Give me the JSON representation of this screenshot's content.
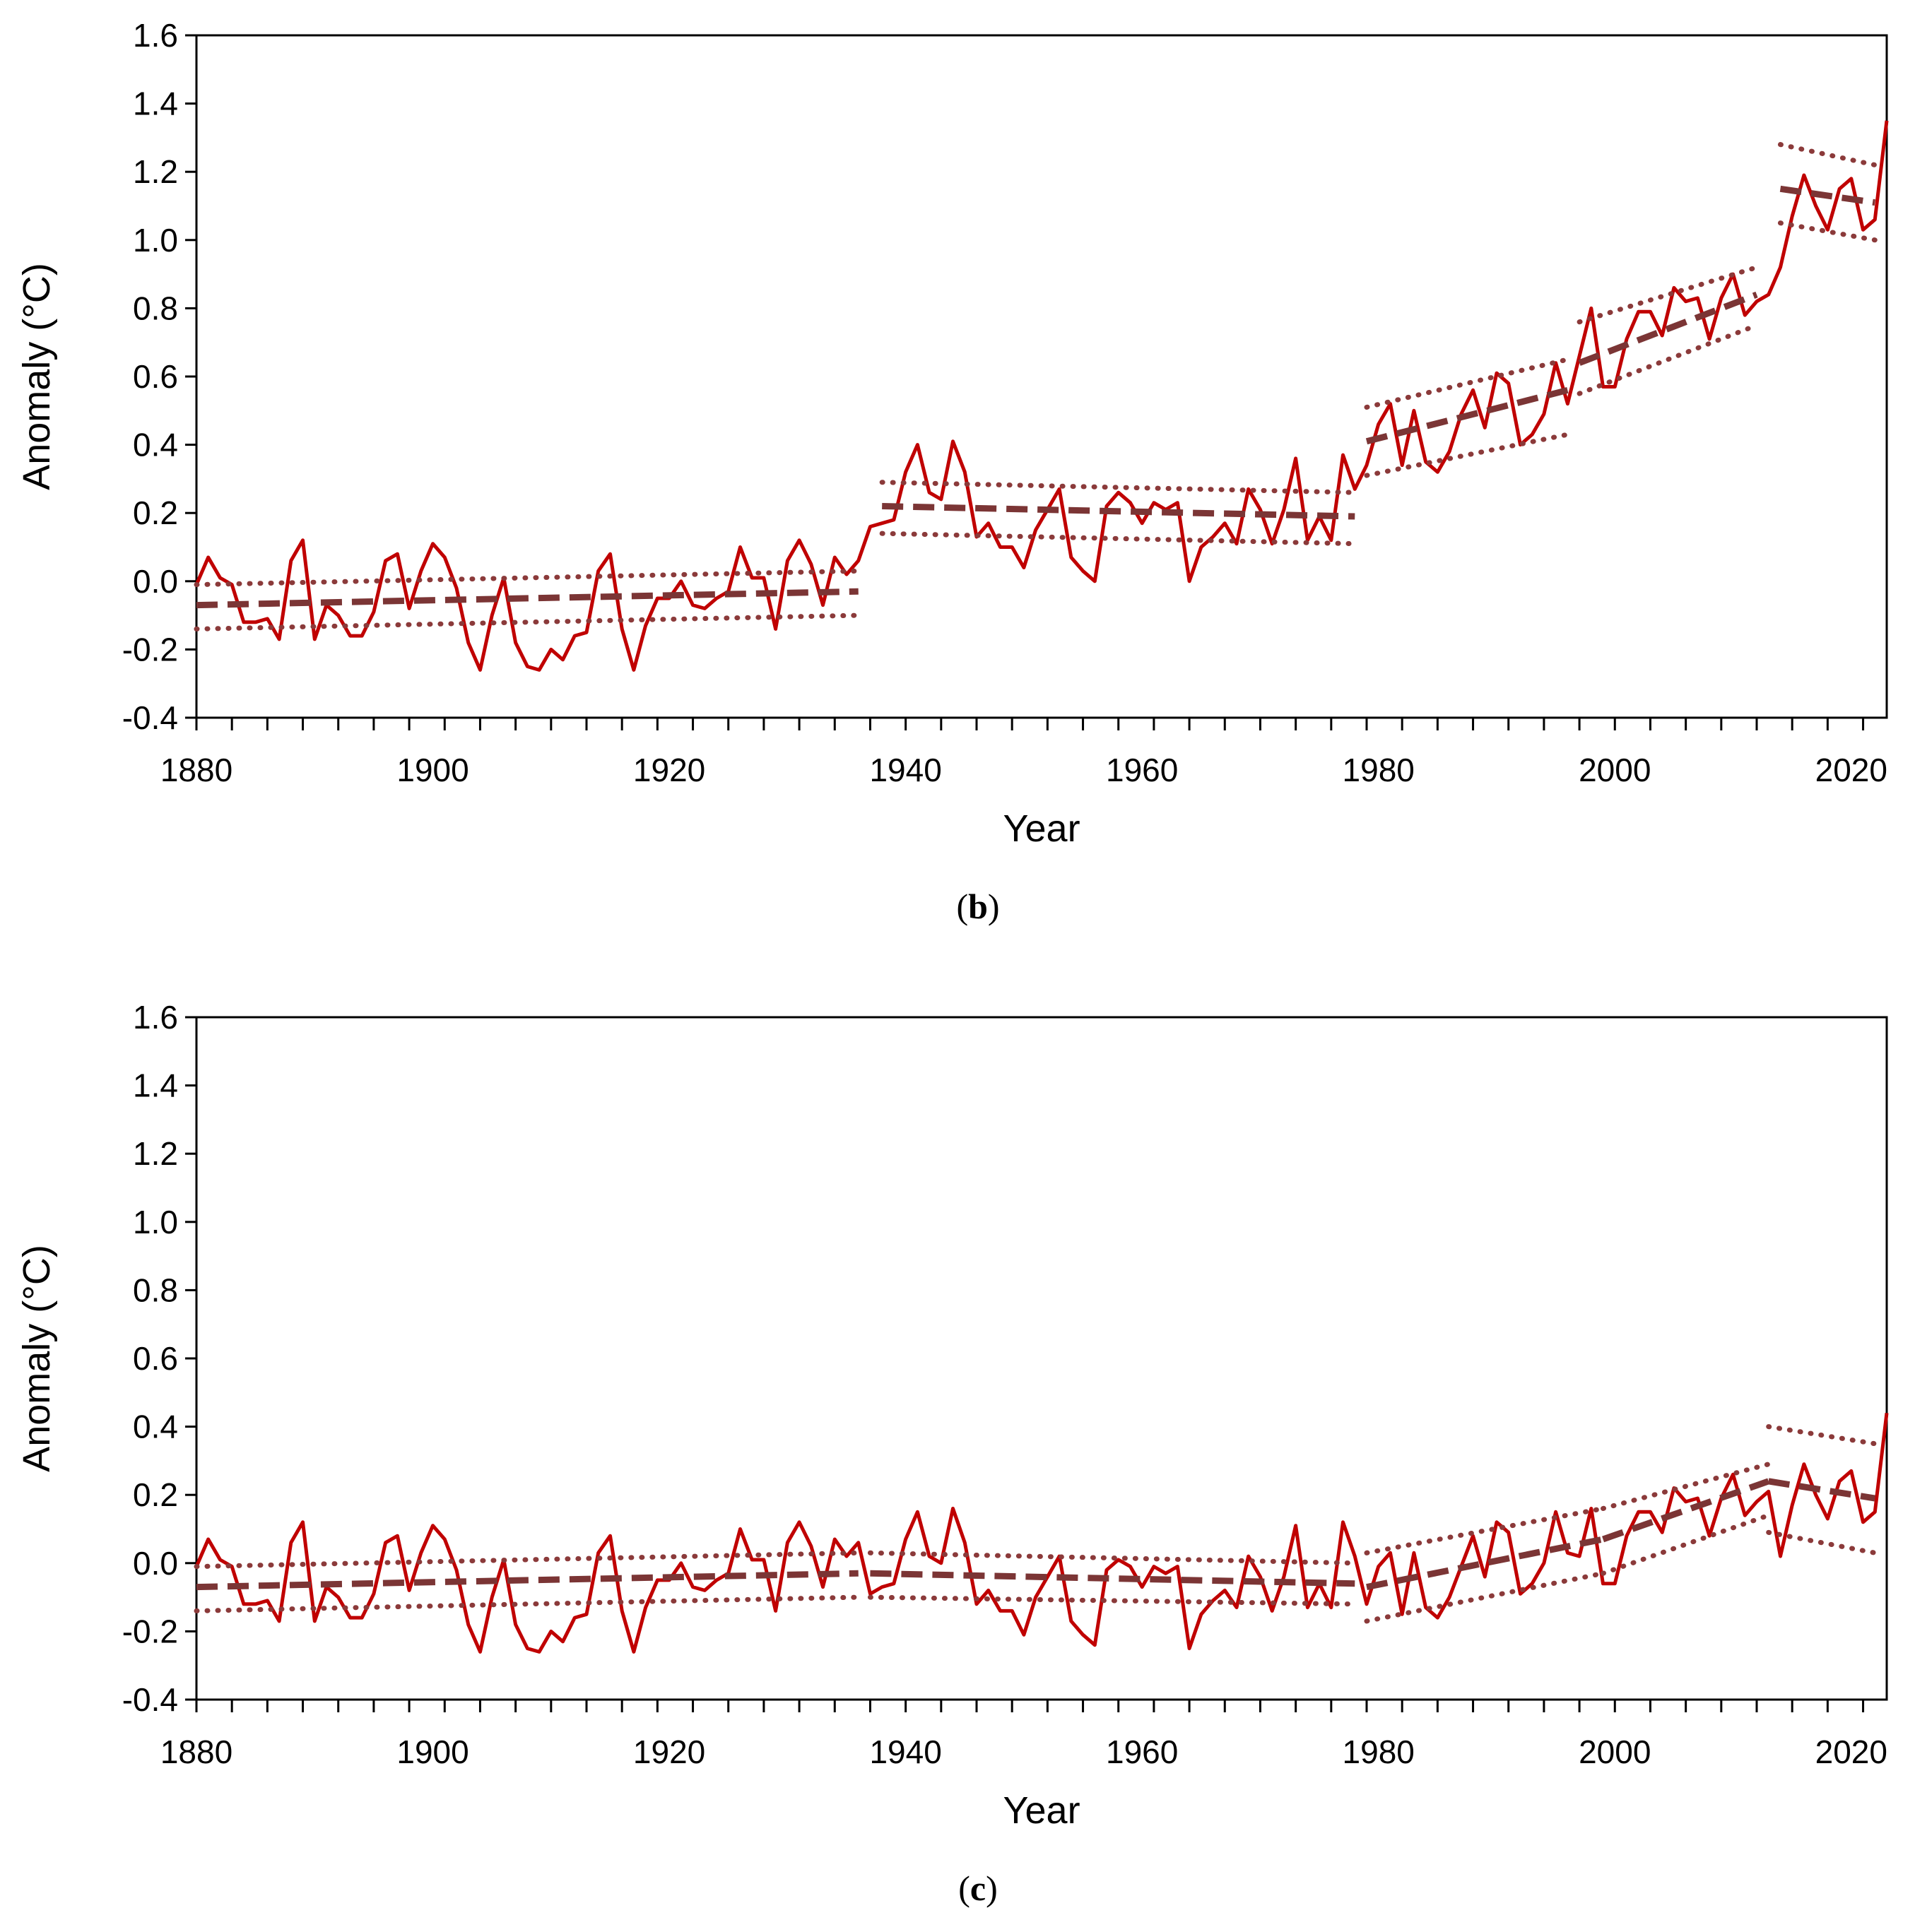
{
  "chart_data": [
    {
      "panel": "b",
      "type": "line",
      "caption_open": "(",
      "caption_letter": "b",
      "caption_close": ")",
      "xlabel": "Year",
      "ylabel": "Anomaly (°C)",
      "xlim": [
        1880,
        2023
      ],
      "ylim": [
        -0.4,
        1.6
      ],
      "xticks": [
        1880,
        1900,
        1920,
        1940,
        1960,
        1980,
        2000,
        2020
      ],
      "yticks": [
        "-0.4",
        "-0.2",
        "0.0",
        "0.2",
        "0.4",
        "0.6",
        "0.8",
        "1.0",
        "1.2",
        "1.4",
        "1.6"
      ],
      "colors": {
        "series": "#c00000",
        "trend": "#7b3535",
        "bounds": "#8b3a3a"
      },
      "series": [
        {
          "name": "Anomaly",
          "x0": 1880,
          "values": [
            -0.01,
            0.07,
            0.01,
            -0.01,
            -0.12,
            -0.12,
            -0.11,
            -0.17,
            0.06,
            0.12,
            -0.17,
            -0.07,
            -0.1,
            -0.16,
            -0.16,
            -0.09,
            0.06,
            0.08,
            -0.08,
            0.03,
            0.11,
            0.07,
            -0.02,
            -0.18,
            -0.26,
            -0.1,
            0.01,
            -0.18,
            -0.25,
            -0.26,
            -0.2,
            -0.23,
            -0.16,
            -0.15,
            0.03,
            0.08,
            -0.14,
            -0.26,
            -0.13,
            -0.05,
            -0.05,
            0.0,
            -0.07,
            -0.08,
            -0.05,
            -0.03,
            0.1,
            0.01,
            0.01,
            -0.14,
            0.06,
            0.12,
            0.05,
            -0.07,
            0.07,
            0.02,
            0.06,
            0.16,
            0.17,
            0.18,
            0.32,
            0.4,
            0.26,
            0.24,
            0.41,
            0.32,
            0.13,
            0.17,
            0.1,
            0.1,
            0.04,
            0.15,
            0.21,
            0.27,
            0.07,
            0.03,
            0.0,
            0.22,
            0.26,
            0.23,
            0.17,
            0.23,
            0.21,
            0.23,
            0.0,
            0.1,
            0.13,
            0.17,
            0.11,
            0.27,
            0.21,
            0.11,
            0.21,
            0.36,
            0.12,
            0.19,
            0.12,
            0.37,
            0.27,
            0.34,
            0.46,
            0.52,
            0.34,
            0.5,
            0.35,
            0.32,
            0.38,
            0.49,
            0.56,
            0.45,
            0.61,
            0.58,
            0.4,
            0.43,
            0.49,
            0.64,
            0.52,
            0.66,
            0.8,
            0.57,
            0.57,
            0.71,
            0.79,
            0.79,
            0.72,
            0.86,
            0.82,
            0.83,
            0.71,
            0.83,
            0.9,
            0.78,
            0.82,
            0.84,
            0.92,
            1.07,
            1.19,
            1.1,
            1.03,
            1.15,
            1.18,
            1.03,
            1.06,
            1.35
          ]
        }
      ],
      "segments": [
        {
          "start": 1880,
          "end": 1936,
          "trend": [
            -0.07,
            -0.03
          ],
          "upper": [
            -0.01,
            0.03
          ],
          "lower": [
            -0.14,
            -0.1
          ]
        },
        {
          "start": 1938,
          "end": 1978,
          "trend": [
            0.22,
            0.19
          ],
          "upper": [
            0.29,
            0.26
          ],
          "lower": [
            0.14,
            0.11
          ]
        },
        {
          "start": 1979,
          "end": 1996,
          "trend": [
            0.41,
            0.56
          ],
          "upper": [
            0.51,
            0.65
          ],
          "lower": [
            0.31,
            0.43
          ]
        },
        {
          "start": 1997,
          "end": 2012,
          "trend": [
            0.64,
            0.84
          ],
          "upper": [
            0.76,
            0.92
          ],
          "lower": [
            0.55,
            0.75
          ]
        },
        {
          "start": 2014,
          "end": 2022,
          "trend": [
            1.15,
            1.11
          ],
          "upper": [
            1.28,
            1.22
          ],
          "lower": [
            1.05,
            1.0
          ]
        }
      ]
    },
    {
      "panel": "c",
      "type": "line",
      "caption_open": "(",
      "caption_letter": "c",
      "caption_close": ")",
      "xlabel": "Year",
      "ylabel": "Anomaly (°C)",
      "xlim": [
        1880,
        2023
      ],
      "ylim": [
        -0.4,
        1.6
      ],
      "xticks": [
        1880,
        1900,
        1920,
        1940,
        1960,
        1980,
        2000,
        2020
      ],
      "yticks": [
        "-0.4",
        "-0.2",
        "0.0",
        "0.2",
        "0.4",
        "0.6",
        "0.8",
        "1.0",
        "1.2",
        "1.4",
        "1.6"
      ],
      "colors": {
        "series": "#c00000",
        "trend": "#7b3535",
        "bounds": "#8b3a3a"
      },
      "series": [
        {
          "name": "Anomaly",
          "x0": 1880,
          "values": [
            -0.01,
            0.07,
            0.01,
            -0.01,
            -0.12,
            -0.12,
            -0.11,
            -0.17,
            0.06,
            0.12,
            -0.17,
            -0.07,
            -0.1,
            -0.16,
            -0.16,
            -0.09,
            0.06,
            0.08,
            -0.08,
            0.03,
            0.11,
            0.07,
            -0.02,
            -0.18,
            -0.26,
            -0.1,
            0.01,
            -0.18,
            -0.25,
            -0.26,
            -0.2,
            -0.23,
            -0.16,
            -0.15,
            0.03,
            0.08,
            -0.14,
            -0.26,
            -0.13,
            -0.05,
            -0.05,
            0.0,
            -0.07,
            -0.08,
            -0.05,
            -0.03,
            0.1,
            0.01,
            0.01,
            -0.14,
            0.06,
            0.12,
            0.05,
            -0.07,
            0.07,
            0.02,
            0.06,
            -0.09,
            -0.07,
            -0.06,
            0.07,
            0.15,
            0.02,
            0.0,
            0.16,
            0.06,
            -0.12,
            -0.08,
            -0.14,
            -0.14,
            -0.21,
            -0.1,
            -0.04,
            0.02,
            -0.17,
            -0.21,
            -0.24,
            -0.02,
            0.01,
            -0.01,
            -0.07,
            -0.01,
            -0.03,
            -0.01,
            -0.25,
            -0.15,
            -0.11,
            -0.08,
            -0.13,
            0.02,
            -0.04,
            -0.14,
            -0.04,
            0.11,
            -0.13,
            -0.06,
            -0.13,
            0.12,
            0.02,
            -0.12,
            -0.01,
            0.03,
            -0.15,
            0.03,
            -0.13,
            -0.16,
            -0.1,
            -0.01,
            0.08,
            -0.04,
            0.12,
            0.09,
            -0.09,
            -0.06,
            0.0,
            0.15,
            0.03,
            0.02,
            0.16,
            -0.06,
            -0.06,
            0.08,
            0.15,
            0.15,
            0.09,
            0.22,
            0.18,
            0.19,
            0.08,
            0.19,
            0.26,
            0.14,
            0.18,
            0.21,
            0.02,
            0.17,
            0.29,
            0.2,
            0.13,
            0.24,
            0.27,
            0.12,
            0.15,
            0.44
          ]
        }
      ],
      "segments": [
        {
          "start": 1880,
          "end": 1936,
          "trend": [
            -0.07,
            -0.03
          ],
          "upper": [
            -0.01,
            0.03
          ],
          "lower": [
            -0.14,
            -0.1
          ]
        },
        {
          "start": 1937,
          "end": 1978,
          "trend": [
            -0.03,
            -0.06
          ],
          "upper": [
            0.03,
            0.0
          ],
          "lower": [
            -0.1,
            -0.12
          ]
        },
        {
          "start": 1979,
          "end": 1999,
          "trend": [
            -0.07,
            0.07
          ],
          "upper": [
            0.03,
            0.16
          ],
          "lower": [
            -0.17,
            -0.03
          ]
        },
        {
          "start": 1999,
          "end": 2013,
          "trend": [
            0.07,
            0.24
          ],
          "upper": [
            0.16,
            0.29
          ],
          "lower": [
            -0.03,
            0.14
          ]
        },
        {
          "start": 2013,
          "end": 2022,
          "trend": [
            0.24,
            0.19
          ],
          "upper": [
            0.4,
            0.35
          ],
          "lower": [
            0.09,
            0.03
          ]
        }
      ]
    }
  ]
}
